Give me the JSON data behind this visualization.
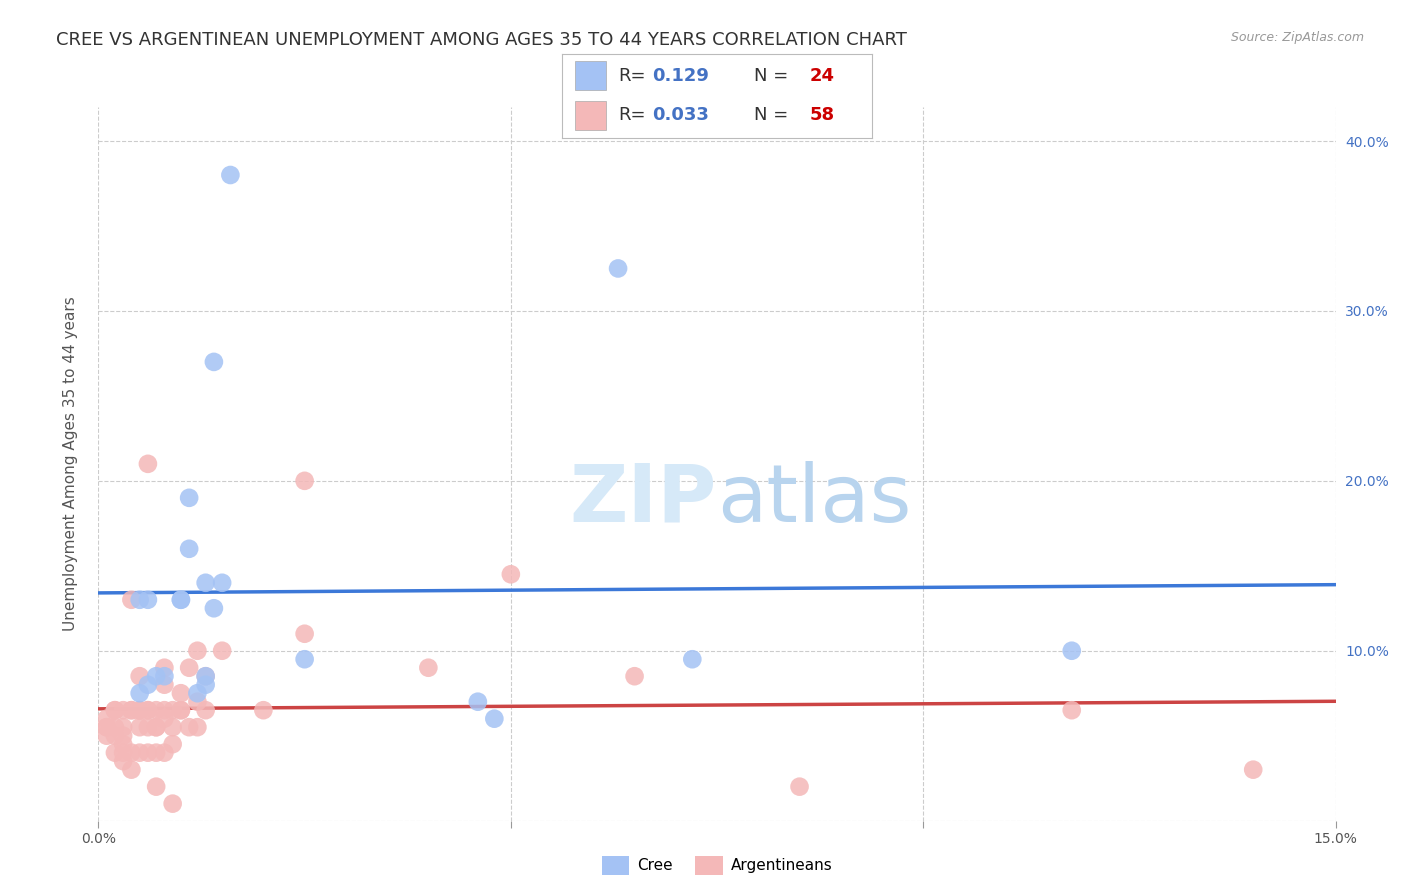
{
  "title": "CREE VS ARGENTINEAN UNEMPLOYMENT AMONG AGES 35 TO 44 YEARS CORRELATION CHART",
  "source": "Source: ZipAtlas.com",
  "ylabel": "Unemployment Among Ages 35 to 44 years",
  "xlim": [
    0.0,
    0.15
  ],
  "ylim": [
    0.0,
    0.42
  ],
  "cree_color": "#a4c2f4",
  "argentinean_color": "#f4b8b8",
  "cree_line_color": "#3c78d8",
  "argentinean_line_color": "#cc4444",
  "watermark_color": "#d6e9f8",
  "cree_x": [
    0.006,
    0.005,
    0.005,
    0.006,
    0.007,
    0.008,
    0.01,
    0.01,
    0.011,
    0.011,
    0.012,
    0.013,
    0.013,
    0.013,
    0.014,
    0.014,
    0.015,
    0.016,
    0.025,
    0.046,
    0.048,
    0.063,
    0.072,
    0.118
  ],
  "cree_y": [
    0.13,
    0.13,
    0.075,
    0.08,
    0.085,
    0.085,
    0.13,
    0.13,
    0.19,
    0.16,
    0.075,
    0.085,
    0.08,
    0.14,
    0.27,
    0.125,
    0.14,
    0.38,
    0.095,
    0.07,
    0.06,
    0.325,
    0.095,
    0.1
  ],
  "arg_x": [
    0.001,
    0.001,
    0.001,
    0.001,
    0.002,
    0.002,
    0.002,
    0.002,
    0.002,
    0.003,
    0.003,
    0.003,
    0.003,
    0.003,
    0.003,
    0.004,
    0.004,
    0.004,
    0.004,
    0.004,
    0.005,
    0.005,
    0.005,
    0.005,
    0.005,
    0.005,
    0.006,
    0.006,
    0.006,
    0.006,
    0.006,
    0.007,
    0.007,
    0.007,
    0.007,
    0.007,
    0.008,
    0.008,
    0.008,
    0.008,
    0.008,
    0.009,
    0.009,
    0.009,
    0.009,
    0.01,
    0.01,
    0.01,
    0.011,
    0.011,
    0.012,
    0.012,
    0.012,
    0.013,
    0.013,
    0.015,
    0.02,
    0.025,
    0.025,
    0.04,
    0.05,
    0.065,
    0.085,
    0.118,
    0.14
  ],
  "arg_y": [
    0.055,
    0.06,
    0.055,
    0.05,
    0.04,
    0.05,
    0.055,
    0.065,
    0.065,
    0.035,
    0.04,
    0.045,
    0.05,
    0.055,
    0.065,
    0.03,
    0.04,
    0.065,
    0.065,
    0.13,
    0.04,
    0.055,
    0.065,
    0.065,
    0.065,
    0.085,
    0.04,
    0.055,
    0.065,
    0.065,
    0.21,
    0.02,
    0.04,
    0.055,
    0.055,
    0.065,
    0.04,
    0.06,
    0.065,
    0.08,
    0.09,
    0.01,
    0.045,
    0.055,
    0.065,
    0.065,
    0.065,
    0.075,
    0.055,
    0.09,
    0.055,
    0.07,
    0.1,
    0.065,
    0.085,
    0.1,
    0.065,
    0.11,
    0.2,
    0.09,
    0.145,
    0.085,
    0.02,
    0.065,
    0.03
  ],
  "background_color": "#ffffff",
  "grid_color": "#cccccc",
  "title_fontsize": 13,
  "axis_label_fontsize": 11,
  "tick_fontsize": 10,
  "legend_fontsize": 13
}
